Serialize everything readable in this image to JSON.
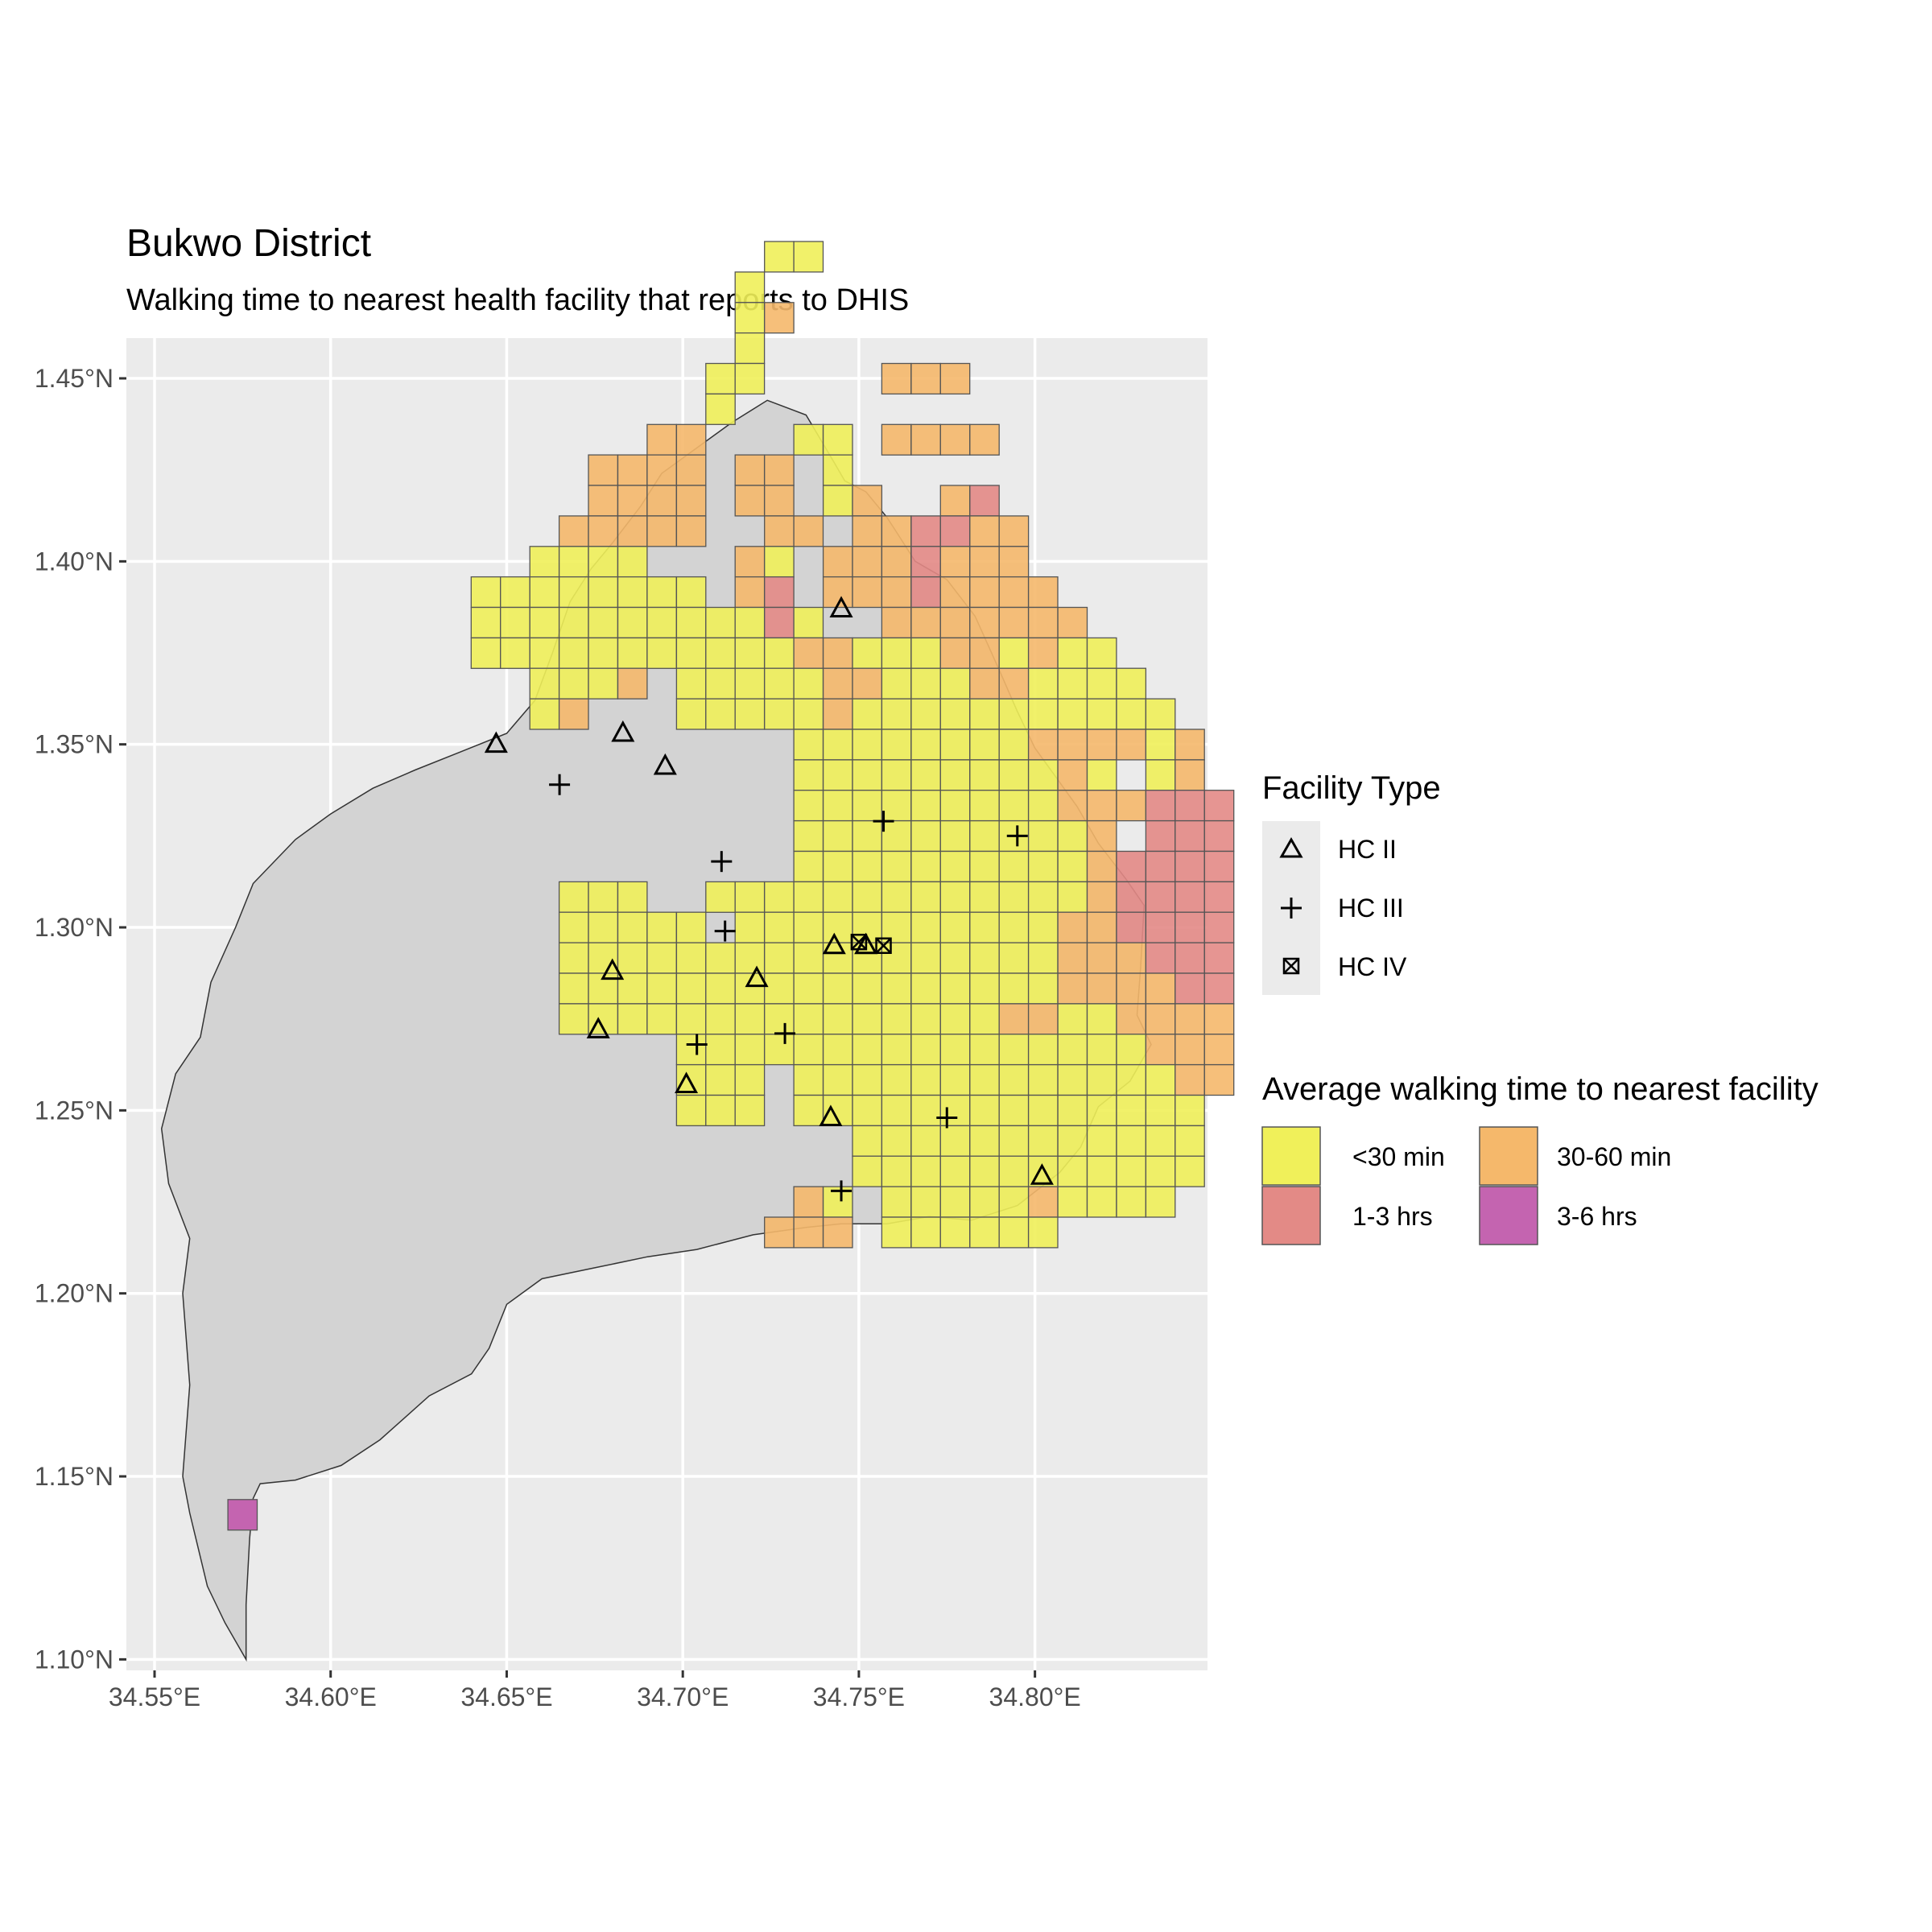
{
  "title": "Bukwo District",
  "subtitle": "Walking time to nearest health facility that reports to DHIS",
  "colors": {
    "panel_background": "#ebebeb",
    "grid_line": "#ffffff",
    "district_fill": "#d3d3d3",
    "cell_border": "#555555"
  },
  "axes": {
    "x_ticks": [
      {
        "value": 34.55,
        "label": "34.55°E"
      },
      {
        "value": 34.6,
        "label": "34.60°E"
      },
      {
        "value": 34.65,
        "label": "34.65°E"
      },
      {
        "value": 34.7,
        "label": "34.70°E"
      },
      {
        "value": 34.75,
        "label": "34.75°E"
      },
      {
        "value": 34.8,
        "label": "34.80°E"
      }
    ],
    "y_ticks": [
      {
        "value": 1.1,
        "label": "1.10°N"
      },
      {
        "value": 1.15,
        "label": "1.15°N"
      },
      {
        "value": 1.2,
        "label": "1.20°N"
      },
      {
        "value": 1.25,
        "label": "1.25°N"
      },
      {
        "value": 1.3,
        "label": "1.30°N"
      },
      {
        "value": 1.35,
        "label": "1.35°N"
      },
      {
        "value": 1.4,
        "label": "1.40°N"
      },
      {
        "value": 1.45,
        "label": "1.45°N"
      }
    ],
    "x_range": [
      34.542,
      34.849
    ],
    "y_range": [
      1.097,
      1.461
    ]
  },
  "legend_facility": {
    "title": "Facility Type",
    "items": [
      {
        "key": "hc2",
        "label": "HC II",
        "icon": "triangle-icon"
      },
      {
        "key": "hc3",
        "label": "HC III",
        "icon": "plus-icon"
      },
      {
        "key": "hc4",
        "label": "HC IV",
        "icon": "boxed-x-icon"
      }
    ]
  },
  "legend_time": {
    "title": "Average walking time to nearest facility",
    "items": [
      {
        "key": "a",
        "label": "<30 min",
        "color": "#f0f05a"
      },
      {
        "key": "b",
        "label": "30-60 min",
        "color": "#f5b86b"
      },
      {
        "key": "c",
        "label": "1-3 hrs",
        "color": "#e38a86"
      },
      {
        "key": "d",
        "label": "3-6 hrs",
        "color": "#c464b0"
      }
    ]
  },
  "chart_data": {
    "type": "map",
    "x_unit": "longitude (°E)",
    "y_unit": "latitude (°N)",
    "grid": true,
    "cell_size_deg": 0.00833,
    "cell_origin": {
      "lon": 34.6399,
      "lat": 1.2125
    },
    "cell_legend": {
      "a": "<30 min",
      "b": "30-60 min",
      "c": "1-3 hrs",
      "d": "3-6 hrs"
    },
    "cell_rows_north_to_south": [
      "..........aa........",
      ".........a..........",
      ".........ab.........",
      ".........a..........",
      "........aa....bbb...",
      "........a...........",
      "......bb...aa.bbbb..",
      "....bbbb.bb.a.......",
      "....bbbb.bb.ab..bc..",
      "...bbbbb..bb.bbccbb.",
      "..aaaa...ba.bbbcbbb.",
      "aaaaaaaa.bc.bbbcbbbb",
      "aaaaaaaaaaca..bbbbbbb",
      "aaaaaaaaaaabbaaabbabaa",
      "..aaab.aaaaabbaaabbaaaa",
      "..ab...aaaaabaaaaaaaaaaa",
      "...........aaaaaaaabbbbab",
      "...........aaaaaaaaaba.ab",
      "...........aaaaaaaaabbbccc",
      "...........aaaaaaaaaab.ccc",
      "...........aaaaaaaaaabcccc",
      "...aaa..aaaaaaaaaaaaabcccc",
      "...aaaaa.aaaaaaaaaaabbcccc",
      "...aaaaaaaaaaaaaaaaabbbccc",
      "...aaaaaaaaaaaaaaaaabbbbcc",
      "...aaaaaaaaaaaaaaabbaabbbb",
      ".......aaaaaaaaaaaaaaaabbb",
      ".......aaa.aaaaaaaaaaaaabb",
      ".......aaa.aaaaaaaaaaaaaa",
      ".............aaaaaaaaaaaa",
      ".............aaaaaaaaaaaa",
      "...........ba.aaaaabaaaa",
      "..........bbb.aaaaaa"
    ],
    "isolated_cells": [
      {
        "lon": 34.575,
        "lat": 1.1395,
        "class": "d"
      }
    ],
    "facilities": [
      {
        "type": "hc2",
        "lon": 34.745,
        "lat": 1.387
      },
      {
        "type": "hc2",
        "lon": 34.647,
        "lat": 1.35
      },
      {
        "type": "hc2",
        "lon": 34.683,
        "lat": 1.353
      },
      {
        "type": "hc2",
        "lon": 34.695,
        "lat": 1.344
      },
      {
        "type": "hc2",
        "lon": 34.743,
        "lat": 1.295
      },
      {
        "type": "hc2",
        "lon": 34.752,
        "lat": 1.295
      },
      {
        "type": "hc2",
        "lon": 34.68,
        "lat": 1.288
      },
      {
        "type": "hc2",
        "lon": 34.721,
        "lat": 1.286
      },
      {
        "type": "hc2",
        "lon": 34.676,
        "lat": 1.272
      },
      {
        "type": "hc2",
        "lon": 34.701,
        "lat": 1.257
      },
      {
        "type": "hc2",
        "lon": 34.742,
        "lat": 1.248
      },
      {
        "type": "hc2",
        "lon": 34.802,
        "lat": 1.232
      },
      {
        "type": "hc3",
        "lon": 34.665,
        "lat": 1.339
      },
      {
        "type": "hc3",
        "lon": 34.757,
        "lat": 1.329
      },
      {
        "type": "hc3",
        "lon": 34.795,
        "lat": 1.325
      },
      {
        "type": "hc3",
        "lon": 34.711,
        "lat": 1.318
      },
      {
        "type": "hc3",
        "lon": 34.712,
        "lat": 1.299
      },
      {
        "type": "hc3",
        "lon": 34.729,
        "lat": 1.271
      },
      {
        "type": "hc3",
        "lon": 34.704,
        "lat": 1.268
      },
      {
        "type": "hc3",
        "lon": 34.775,
        "lat": 1.248
      },
      {
        "type": "hc3",
        "lon": 34.745,
        "lat": 1.228
      },
      {
        "type": "hc4",
        "lon": 34.75,
        "lat": 1.296
      },
      {
        "type": "hc4",
        "lon": 34.757,
        "lat": 1.295
      }
    ],
    "district_outline": [
      [
        34.668,
        1.389
      ],
      [
        34.674,
        1.398
      ],
      [
        34.68,
        1.405
      ],
      [
        34.688,
        1.415
      ],
      [
        34.694,
        1.424
      ],
      [
        34.714,
        1.438
      ],
      [
        34.724,
        1.444
      ],
      [
        34.735,
        1.44
      ],
      [
        34.743,
        1.427
      ],
      [
        34.746,
        1.422
      ],
      [
        34.752,
        1.419
      ],
      [
        34.758,
        1.412
      ],
      [
        34.76,
        1.409
      ],
      [
        34.766,
        1.4
      ],
      [
        34.775,
        1.395
      ],
      [
        34.783,
        1.385
      ],
      [
        34.79,
        1.37
      ],
      [
        34.795,
        1.359
      ],
      [
        34.8,
        1.349
      ],
      [
        34.806,
        1.341
      ],
      [
        34.812,
        1.333
      ],
      [
        34.818,
        1.323
      ],
      [
        34.826,
        1.313
      ],
      [
        34.831,
        1.306
      ],
      [
        34.83,
        1.289
      ],
      [
        34.829,
        1.276
      ],
      [
        34.833,
        1.268
      ],
      [
        34.827,
        1.258
      ],
      [
        34.818,
        1.251
      ],
      [
        34.813,
        1.24
      ],
      [
        34.807,
        1.233
      ],
      [
        34.795,
        1.224
      ],
      [
        34.782,
        1.22
      ],
      [
        34.77,
        1.221
      ],
      [
        34.758,
        1.219
      ],
      [
        34.745,
        1.219
      ],
      [
        34.735,
        1.218
      ],
      [
        34.72,
        1.216
      ],
      [
        34.704,
        1.212
      ],
      [
        34.69,
        1.21
      ],
      [
        34.675,
        1.207
      ],
      [
        34.66,
        1.204
      ],
      [
        34.65,
        1.197
      ],
      [
        34.645,
        1.185
      ],
      [
        34.64,
        1.178
      ],
      [
        34.628,
        1.172
      ],
      [
        34.614,
        1.16
      ],
      [
        34.603,
        1.153
      ],
      [
        34.59,
        1.149
      ],
      [
        34.58,
        1.148
      ],
      [
        34.578,
        1.144
      ],
      [
        34.577,
        1.133
      ],
      [
        34.576,
        1.115
      ],
      [
        34.576,
        1.1
      ],
      [
        34.57,
        1.11
      ],
      [
        34.565,
        1.12
      ],
      [
        34.56,
        1.14
      ],
      [
        34.558,
        1.15
      ],
      [
        34.56,
        1.175
      ],
      [
        34.558,
        1.2
      ],
      [
        34.56,
        1.215
      ],
      [
        34.554,
        1.23
      ],
      [
        34.552,
        1.245
      ],
      [
        34.556,
        1.26
      ],
      [
        34.563,
        1.27
      ],
      [
        34.566,
        1.285
      ],
      [
        34.573,
        1.3
      ],
      [
        34.578,
        1.312
      ],
      [
        34.59,
        1.324
      ],
      [
        34.6,
        1.331
      ],
      [
        34.612,
        1.338
      ],
      [
        34.624,
        1.343
      ],
      [
        34.637,
        1.348
      ],
      [
        34.65,
        1.353
      ],
      [
        34.658,
        1.362
      ],
      [
        34.663,
        1.375
      ]
    ]
  }
}
